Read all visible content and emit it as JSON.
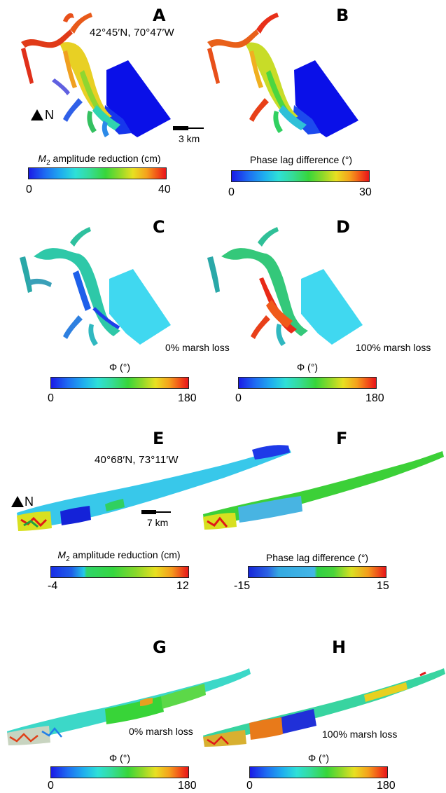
{
  "panels": {
    "A": {
      "letter": "A",
      "coord": "42°45′N, 70°47′W",
      "north": "N",
      "scale": "3 km"
    },
    "B": {
      "letter": "B"
    },
    "C": {
      "letter": "C",
      "note": "0% marsh loss"
    },
    "D": {
      "letter": "D",
      "note": "100% marsh loss"
    },
    "E": {
      "letter": "E",
      "coord": "40°68′N, 73°11′W",
      "north": "N",
      "scale": "7 km"
    },
    "F": {
      "letter": "F"
    },
    "G": {
      "letter": "G",
      "note": "0% marsh loss"
    },
    "H": {
      "letter": "H",
      "note": "100% marsh loss"
    }
  },
  "colorbars": {
    "amp1": {
      "title_italic": "M",
      "title_sub": "2",
      "title_rest": " amplitude reduction (cm)",
      "min": "0",
      "max": "40"
    },
    "phase1": {
      "title": "Phase lag difference (°)",
      "min": "0",
      "max": "30"
    },
    "phiC": {
      "title": "Φ (°)",
      "min": "0",
      "max": "180"
    },
    "phiD": {
      "title": "Φ (°)",
      "min": "0",
      "max": "180"
    },
    "amp2": {
      "title_italic": "M",
      "title_sub": "2",
      "title_rest": " amplitude reduction (cm)",
      "min": "-4",
      "max": "12"
    },
    "phase2": {
      "title": "Phase lag difference (°)",
      "min": "-15",
      "max": "15"
    },
    "phiG": {
      "title": "Φ (°)",
      "min": "0",
      "max": "180"
    },
    "phiH": {
      "title": "Φ (°)",
      "min": "0",
      "max": "180"
    }
  },
  "colors": {
    "deep_blue": "#1010e0",
    "cyan": "#3fd8f0",
    "green": "#38d638",
    "yellow": "#e8e020",
    "orange": "#f0801a",
    "red": "#e0141a"
  }
}
